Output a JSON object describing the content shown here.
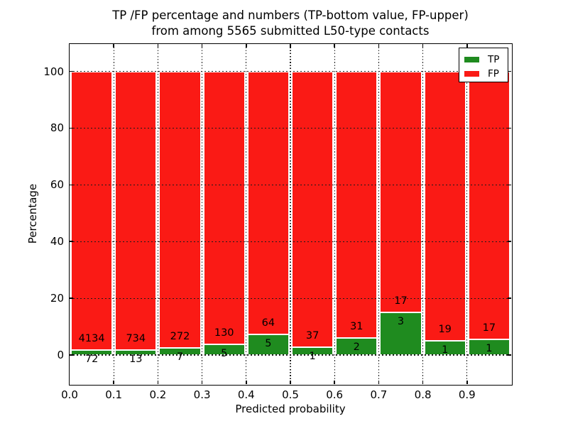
{
  "title": {
    "line1": "TP /FP percentage and numbers (TP-bottom value, FP-upper)",
    "line2": "from among 5565 submitted L50-type contacts"
  },
  "axes": {
    "xlabel": "Predicted probability",
    "ylabel": "Percentage",
    "x_tick_labels": [
      "0.0",
      "0.1",
      "0.2",
      "0.3",
      "0.4",
      "0.5",
      "0.6",
      "0.7",
      "0.8",
      "0.9"
    ],
    "y_tick_labels": [
      "0",
      "20",
      "40",
      "60",
      "80",
      "100"
    ]
  },
  "legend": {
    "entries": [
      {
        "label": "TP",
        "color": "#1f8b1f"
      },
      {
        "label": "FP",
        "color": "#fa1a15"
      }
    ]
  },
  "colors": {
    "tp": "#1f8b1f",
    "fp": "#fa1a15",
    "grid": "#1a1a1a",
    "bar_edge": "#ffffff"
  },
  "chart_data": {
    "type": "bar",
    "stacked": true,
    "normalized_to_percent": true,
    "title": "TP /FP percentage and numbers (TP-bottom value, FP-upper) from among 5565 submitted L50-type contacts",
    "xlabel": "Predicted probability",
    "ylabel": "Percentage",
    "categories": [
      "0.0-0.1",
      "0.1-0.2",
      "0.2-0.3",
      "0.3-0.4",
      "0.4-0.5",
      "0.5-0.6",
      "0.6-0.7",
      "0.7-0.8",
      "0.8-0.9",
      "0.9-1.0"
    ],
    "series": [
      {
        "name": "TP",
        "color": "#1f8b1f",
        "values": [
          72,
          13,
          7,
          5,
          5,
          1,
          2,
          3,
          1,
          1
        ]
      },
      {
        "name": "FP",
        "color": "#fa1a15",
        "values": [
          4134,
          734,
          272,
          130,
          64,
          37,
          31,
          17,
          19,
          17
        ]
      }
    ],
    "tp_percent_of_bin": [
      1.71,
      1.74,
      2.51,
      3.7,
      7.25,
      2.63,
      6.06,
      15.0,
      5.0,
      5.56
    ],
    "xlim": [
      0.0,
      1.0
    ],
    "ylim": [
      -10,
      110
    ],
    "y_ticks": [
      0,
      20,
      40,
      60,
      80,
      100
    ],
    "x_ticks": [
      0.0,
      0.1,
      0.2,
      0.3,
      0.4,
      0.5,
      0.6,
      0.7,
      0.8,
      0.9
    ],
    "grid": true,
    "legend_position": "upper right"
  }
}
